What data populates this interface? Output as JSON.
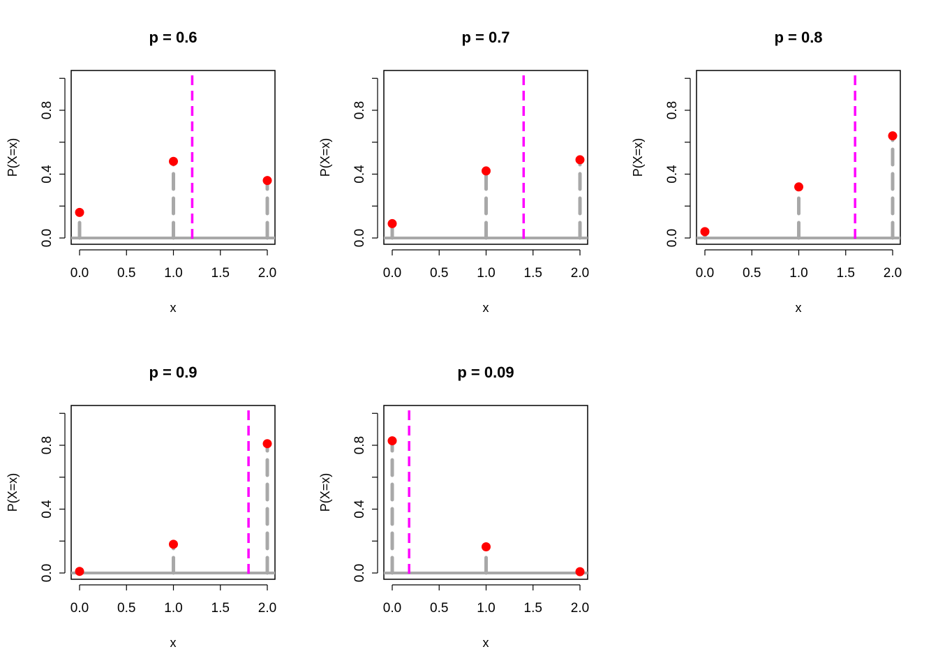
{
  "chart_data": [
    {
      "type": "scatter",
      "title": "p =  0.6",
      "xlabel": "x",
      "ylabel": "P(X=x)",
      "xlim": [
        0,
        2
      ],
      "ylim": [
        0,
        1
      ],
      "x_ticks": [
        "0.0",
        "0.5",
        "1.0",
        "1.5",
        "2.0"
      ],
      "y_ticks": [
        "0.0",
        "0.4",
        "0.8"
      ],
      "x": [
        0,
        1,
        2
      ],
      "values": [
        0.16,
        0.48,
        0.36
      ],
      "mean_line": 1.2
    },
    {
      "type": "scatter",
      "title": "p =  0.7",
      "xlabel": "x",
      "ylabel": "P(X=x)",
      "xlim": [
        0,
        2
      ],
      "ylim": [
        0,
        1
      ],
      "x_ticks": [
        "0.0",
        "0.5",
        "1.0",
        "1.5",
        "2.0"
      ],
      "y_ticks": [
        "0.0",
        "0.4",
        "0.8"
      ],
      "x": [
        0,
        1,
        2
      ],
      "values": [
        0.09,
        0.42,
        0.49
      ],
      "mean_line": 1.4
    },
    {
      "type": "scatter",
      "title": "p =  0.8",
      "xlabel": "x",
      "ylabel": "P(X=x)",
      "xlim": [
        0,
        2
      ],
      "ylim": [
        0,
        1
      ],
      "x_ticks": [
        "0.0",
        "0.5",
        "1.0",
        "1.5",
        "2.0"
      ],
      "y_ticks": [
        "0.0",
        "0.4",
        "0.8"
      ],
      "x": [
        0,
        1,
        2
      ],
      "values": [
        0.04,
        0.32,
        0.64
      ],
      "mean_line": 1.6
    },
    {
      "type": "scatter",
      "title": "p =  0.9",
      "xlabel": "x",
      "ylabel": "P(X=x)",
      "xlim": [
        0,
        2
      ],
      "ylim": [
        0,
        1
      ],
      "x_ticks": [
        "0.0",
        "0.5",
        "1.0",
        "1.5",
        "2.0"
      ],
      "y_ticks": [
        "0.0",
        "0.4",
        "0.8"
      ],
      "x": [
        0,
        1,
        2
      ],
      "values": [
        0.01,
        0.18,
        0.81
      ],
      "mean_line": 1.8
    },
    {
      "type": "scatter",
      "title": "p =  0.09",
      "xlabel": "x",
      "ylabel": "P(X=x)",
      "xlim": [
        0,
        2
      ],
      "ylim": [
        0,
        1
      ],
      "x_ticks": [
        "0.0",
        "0.5",
        "1.0",
        "1.5",
        "2.0"
      ],
      "y_ticks": [
        "0.0",
        "0.4",
        "0.8"
      ],
      "x": [
        0,
        1,
        2
      ],
      "values": [
        0.8281,
        0.1638,
        0.0081
      ],
      "mean_line": 0.18
    }
  ],
  "colors": {
    "points": "#ff0000",
    "stems": "#a8a8a8",
    "baseline": "#a8a8a8",
    "mean_line": "#ff00ff",
    "axes": "#000000"
  }
}
